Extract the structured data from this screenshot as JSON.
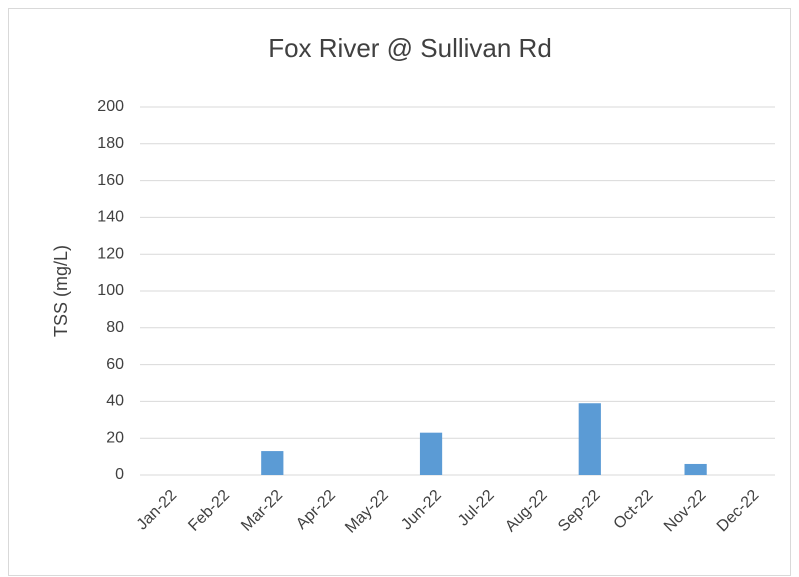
{
  "chart_data": {
    "type": "bar",
    "title": "Fox River @ Sullivan Rd",
    "y_label": "TSS (mg/L)",
    "categories": [
      "Jan-22",
      "Feb-22",
      "Mar-22",
      "Apr-22",
      "May-22",
      "Jun-22",
      "Jul-22",
      "Aug-22",
      "Sep-22",
      "Oct-22",
      "Nov-22",
      "Dec-22"
    ],
    "values": [
      null,
      null,
      13,
      null,
      null,
      23,
      null,
      null,
      39,
      null,
      6,
      null
    ],
    "color": "#5b9bd5",
    "ylim": [
      0,
      200
    ],
    "yticks": [
      0,
      20,
      40,
      60,
      80,
      100,
      120,
      140,
      160,
      180,
      200
    ],
    "grid": true
  }
}
